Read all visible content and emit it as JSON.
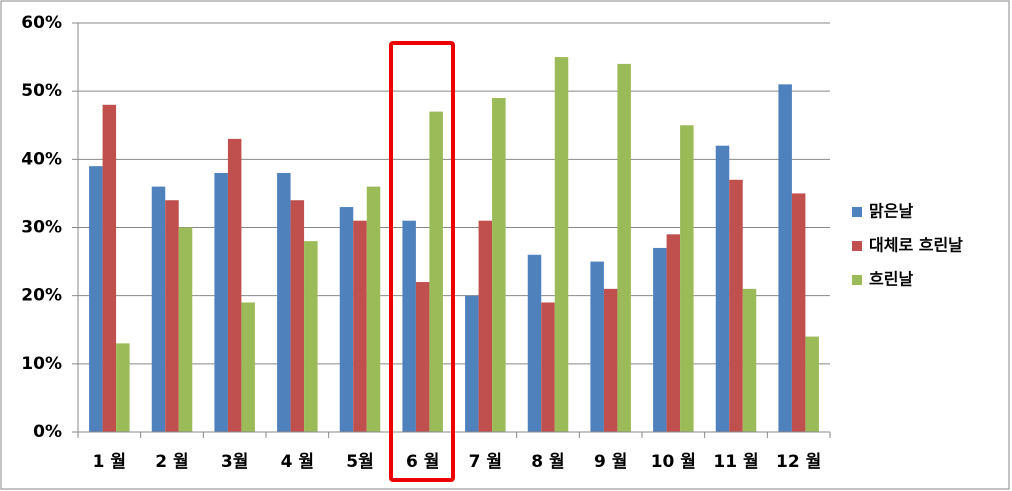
{
  "chart_data": {
    "type": "bar",
    "categories": [
      "1 월",
      "2 월",
      "3월",
      "4 월",
      "5월",
      "6 월",
      "7 월",
      "8 월",
      "9 월",
      "10 월",
      "11 월",
      "12 월"
    ],
    "series": [
      {
        "name": "맑은날",
        "color": "#4f81bd",
        "values": [
          39,
          36,
          38,
          38,
          33,
          31,
          20,
          26,
          25,
          27,
          42,
          51
        ]
      },
      {
        "name": "대체로 흐린날",
        "color": "#c0504d",
        "values": [
          48,
          34,
          43,
          34,
          31,
          22,
          31,
          19,
          21,
          29,
          37,
          35
        ]
      },
      {
        "name": "흐린날",
        "color": "#9bbb59",
        "values": [
          13,
          30,
          19,
          28,
          36,
          47,
          49,
          55,
          54,
          45,
          21,
          14
        ]
      }
    ],
    "ylim": [
      0,
      60
    ],
    "yticks": [
      {
        "value": 0,
        "label": "0%"
      },
      {
        "value": 10,
        "label": "10%"
      },
      {
        "value": 20,
        "label": "20%"
      },
      {
        "value": 30,
        "label": "30%"
      },
      {
        "value": 40,
        "label": "40%"
      },
      {
        "value": 50,
        "label": "50%"
      },
      {
        "value": 60,
        "label": "60%"
      }
    ],
    "grid": true,
    "legend": "right"
  }
}
